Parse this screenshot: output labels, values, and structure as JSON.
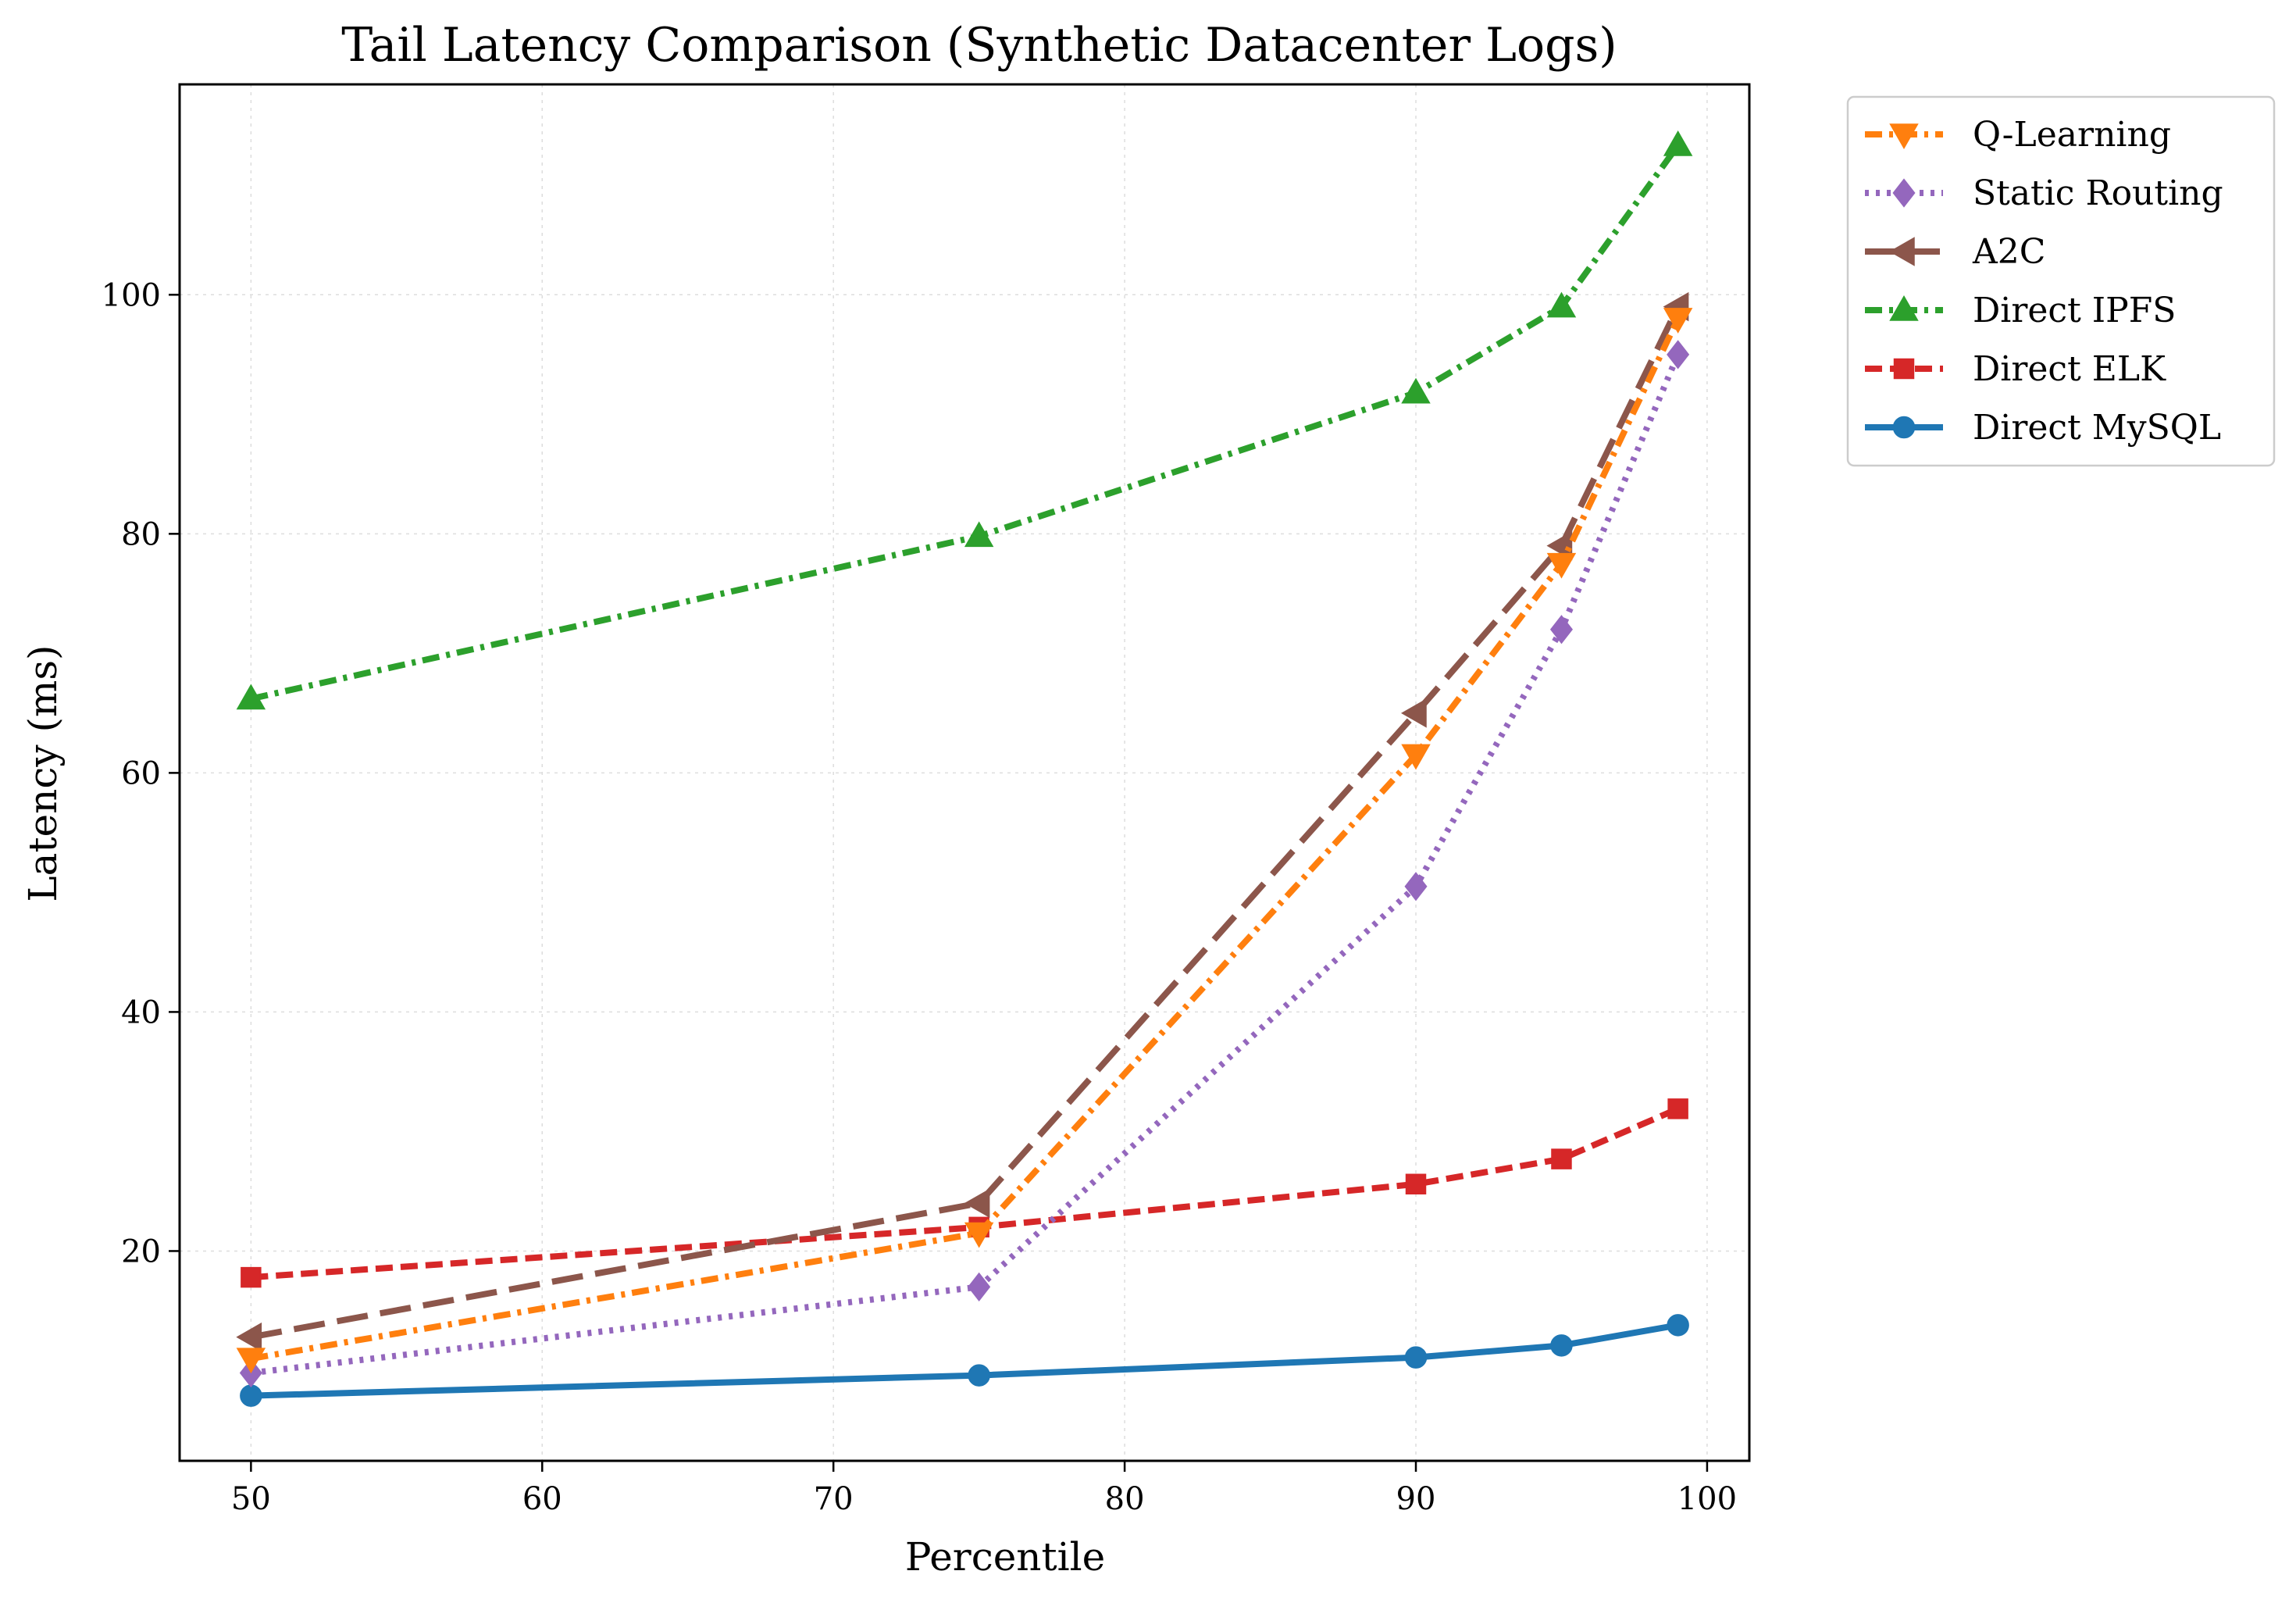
{
  "chart_data": {
    "type": "line",
    "title": "Tail Latency Comparison (Synthetic Datacenter Logs)",
    "xlabel": "Percentile",
    "ylabel": "Latency (ms)",
    "xlim": [
      47.55,
      101.45
    ],
    "ylim": [
      2.45,
      117.6
    ],
    "x_ticks": [
      50,
      60,
      70,
      80,
      90,
      100
    ],
    "y_ticks": [
      20,
      40,
      60,
      80,
      100
    ],
    "grid": true,
    "legend_position": "outside-upper-right",
    "x": [
      50,
      75,
      90,
      95,
      99
    ],
    "series": [
      {
        "name": "Q-Learning",
        "values": [
          11.0,
          21.5,
          61.5,
          77.5,
          98.0
        ],
        "color": "#ff7f0e",
        "dash": "dashdot",
        "marker": "triangle-down"
      },
      {
        "name": "Static Routing",
        "values": [
          9.8,
          17.0,
          50.5,
          72.0,
          95.0
        ],
        "color": "#9467bd",
        "dash": "dotted",
        "marker": "diamond"
      },
      {
        "name": "A2C",
        "values": [
          12.8,
          24.0,
          65.0,
          79.0,
          99.0
        ],
        "color": "#8c564b",
        "dash": "longdash",
        "marker": "triangle-left"
      },
      {
        "name": "Direct IPFS",
        "values": [
          66.2,
          79.8,
          91.8,
          99.0,
          112.5
        ],
        "color": "#2ca02c",
        "dash": "dashdot",
        "marker": "triangle-up"
      },
      {
        "name": "Direct ELK",
        "values": [
          17.8,
          22.0,
          25.6,
          27.7,
          31.9
        ],
        "color": "#d62728",
        "dash": "dashed",
        "marker": "square"
      },
      {
        "name": "Direct MySQL",
        "values": [
          7.9,
          9.6,
          11.1,
          12.1,
          13.8
        ],
        "color": "#1f77b4",
        "dash": "solid",
        "marker": "circle"
      }
    ]
  }
}
